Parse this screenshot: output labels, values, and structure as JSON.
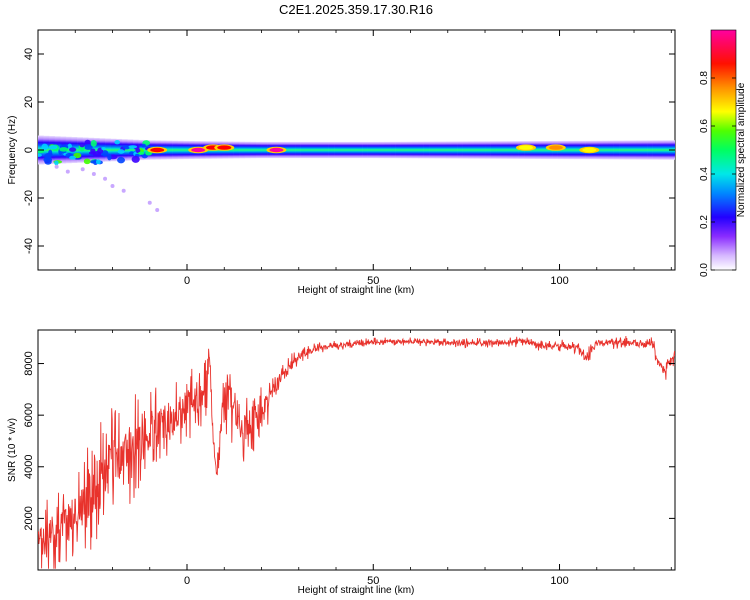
{
  "figure_title": "C2E1.2025.359.17.30.R16",
  "chart_data": [
    {
      "type": "heatmap",
      "title": "C2E1.2025.359.17.30.R16",
      "xlabel": "Height of straight line (km)",
      "ylabel": "Frequency (Hz)",
      "xlim": [
        -40,
        131
      ],
      "ylim": [
        -50,
        50
      ],
      "x_ticks": [
        0,
        50,
        100
      ],
      "x_tick_labels": [
        "0",
        "50",
        "100"
      ],
      "y_ticks": [
        40,
        20,
        0,
        -20,
        -40
      ],
      "y_tick_labels": [
        "40",
        "20",
        "0",
        "-20",
        "-40"
      ],
      "band": {
        "center_frequency": 0,
        "half_width_hz": [
          [
            -40,
            4.5
          ],
          [
            -30,
            4
          ],
          [
            -20,
            3.5
          ],
          [
            -10,
            3
          ],
          [
            0,
            2.8
          ],
          [
            20,
            2.5
          ],
          [
            50,
            2.5
          ],
          [
            100,
            2.8
          ],
          [
            131,
            3
          ]
        ]
      },
      "hotspots": [
        {
          "x": -8,
          "y": 0,
          "amplitude": 0.9
        },
        {
          "x": 3,
          "y": 0,
          "amplitude": 0.95
        },
        {
          "x": 7,
          "y": 1,
          "amplitude": 0.85
        },
        {
          "x": 10,
          "y": 1,
          "amplitude": 0.85
        },
        {
          "x": 24,
          "y": 0,
          "amplitude": 0.95
        },
        {
          "x": 99,
          "y": 1,
          "amplitude": 0.75
        },
        {
          "x": 91,
          "y": 1,
          "amplitude": 0.7
        },
        {
          "x": 108,
          "y": 0,
          "amplitude": 0.7
        }
      ],
      "scatter_points": [
        {
          "x": -28,
          "y": -8
        },
        {
          "x": -25,
          "y": -10
        },
        {
          "x": -20,
          "y": -15
        },
        {
          "x": -17,
          "y": -17
        },
        {
          "x": -10,
          "y": -22
        },
        {
          "x": -8,
          "y": -25
        },
        {
          "x": -35,
          "y": -7
        },
        {
          "x": -32,
          "y": -9
        },
        {
          "x": -22,
          "y": -12
        }
      ],
      "colorbar": {
        "label": "Normalized spectral amplitude",
        "range": [
          0,
          1
        ],
        "ticks": [
          0.0,
          0.2,
          0.4,
          0.6,
          0.8
        ],
        "tick_labels": [
          "0.0",
          "0.2",
          "0.4",
          "0.6",
          "0.8"
        ],
        "colors": [
          "#ffffff",
          "#b388ff",
          "#3a00ff",
          "#0044ff",
          "#00d0ff",
          "#00ff70",
          "#40ff00",
          "#ffff00",
          "#ff9000",
          "#ff0000",
          "#ff00a0"
        ]
      }
    },
    {
      "type": "line",
      "xlabel": "Height of straight line (km)",
      "ylabel": "SNR (10 * v/v)",
      "xlim": [
        -40,
        131
      ],
      "ylim": [
        0,
        9300
      ],
      "x_ticks": [
        0,
        50,
        100
      ],
      "x_tick_labels": [
        "0",
        "50",
        "100"
      ],
      "y_ticks": [
        2000,
        4000,
        6000,
        8000
      ],
      "y_tick_labels": [
        "2000",
        "4000",
        "6000",
        "8000"
      ],
      "series": [
        {
          "name": "SNR",
          "color": "#e8322c",
          "x": [
            -40,
            -35,
            -30,
            -25,
            -20,
            -15,
            -10,
            -5,
            0,
            5,
            6,
            7,
            8,
            10,
            15,
            20,
            25,
            30,
            35,
            40,
            50,
            60,
            70,
            80,
            90,
            95,
            100,
            105,
            107,
            110,
            120,
            125,
            128,
            131
          ],
          "values": [
            900,
            1500,
            2200,
            3200,
            4000,
            4700,
            5200,
            5800,
            6400,
            6900,
            8500,
            5000,
            3500,
            6800,
            5600,
            6000,
            7400,
            8300,
            8600,
            8700,
            8850,
            8850,
            8800,
            8800,
            8850,
            8700,
            8700,
            8600,
            8200,
            8800,
            8800,
            8700,
            7700,
            8400
          ],
          "noise_amplitude": [
            900,
            1100,
            1300,
            1500,
            1500,
            1300,
            1100,
            1000,
            900,
            800,
            500,
            500,
            600,
            900,
            900,
            700,
            400,
            200,
            150,
            120,
            100,
            100,
            120,
            120,
            130,
            150,
            150,
            150,
            200,
            150,
            180,
            200,
            300,
            250
          ]
        }
      ]
    }
  ]
}
